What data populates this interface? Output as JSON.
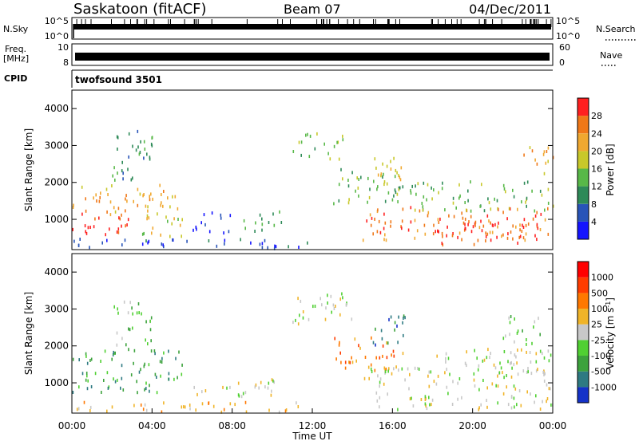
{
  "header": {
    "station": "Saskatoon (fitACF)",
    "beam": "Beam 07",
    "date": "04/Dec/2011"
  },
  "top_panels": {
    "nsky_label": "N.Sky",
    "nsky_ticks": [
      "10^5",
      "10^0"
    ],
    "nsearch_label": "N.Search",
    "nsearch_ticks": [
      "10^5",
      "10^0"
    ],
    "freq_label_line1": "Freq.",
    "freq_label_line2": "[MHz]",
    "freq_ticks": [
      "10",
      "8"
    ],
    "nave_label": "Nave",
    "nave_ticks": [
      "60",
      "0"
    ],
    "cpid_label": "CPID",
    "cpid_value": "twofsound 3501"
  },
  "chart_data": [
    {
      "type": "heatmap",
      "name": "power",
      "ylabel": "Slant Range [km]",
      "ylim": [
        180,
        4500
      ],
      "yticks": [
        "1000",
        "2000",
        "3000",
        "4000"
      ],
      "colorbar_label": "Power [dB]",
      "colorbar_ticks": [
        "4",
        "8",
        "12",
        "16",
        "20",
        "24",
        "28"
      ],
      "colorbar_colors": [
        "#1414ff",
        "#2854b8",
        "#2e8a58",
        "#58b848",
        "#c8c82a",
        "#f0a830",
        "#f07818",
        "#ff2020"
      ],
      "regions": [
        {
          "t0": 0.0,
          "t1": 2.8,
          "r0": 500,
          "r1": 1200,
          "level": 7
        },
        {
          "t0": 0.0,
          "t1": 5.5,
          "r0": 1100,
          "r1": 1900,
          "level": 5
        },
        {
          "t0": 3.0,
          "t1": 5.5,
          "r0": 500,
          "r1": 1100,
          "level": 4
        },
        {
          "t0": 2.0,
          "t1": 4.0,
          "r0": 2000,
          "r1": 3500,
          "level": 2
        },
        {
          "t0": 6.0,
          "t1": 8.0,
          "r0": 600,
          "r1": 1200,
          "level": 1
        },
        {
          "t0": 8.5,
          "t1": 10.5,
          "r0": 600,
          "r1": 1200,
          "level": 2
        },
        {
          "t0": 0.0,
          "t1": 12.0,
          "r0": 180,
          "r1": 450,
          "level": 1
        },
        {
          "t0": 11.0,
          "t1": 13.5,
          "r0": 2600,
          "r1": 3300,
          "level": 3
        },
        {
          "t0": 13.0,
          "t1": 16.5,
          "r0": 1400,
          "r1": 2400,
          "level": 3
        },
        {
          "t0": 15.0,
          "t1": 16.5,
          "r0": 2000,
          "r1": 2700,
          "level": 5
        },
        {
          "t0": 14.5,
          "t1": 24.0,
          "r0": 400,
          "r1": 1300,
          "level": 6
        },
        {
          "t0": 18.0,
          "t1": 23.5,
          "r0": 250,
          "r1": 900,
          "level": 7
        },
        {
          "t0": 16.0,
          "t1": 24.0,
          "r0": 1200,
          "r1": 2000,
          "level": 3
        },
        {
          "t0": 22.5,
          "t1": 24.0,
          "r0": 2200,
          "r1": 3000,
          "level": 5
        }
      ]
    },
    {
      "type": "heatmap",
      "name": "velocity",
      "xlabel": "Time UT",
      "ylabel": "Slant Range [km]",
      "ylim": [
        180,
        4500
      ],
      "yticks": [
        "1000",
        "2000",
        "3000",
        "4000"
      ],
      "xticks": [
        "00:00",
        "04:00",
        "08:00",
        "12:00",
        "16:00",
        "20:00",
        "00:00"
      ],
      "colorbar_label": "Velocity [m s",
      "colorbar_sup": "-1",
      "colorbar_label_end": "]",
      "colorbar_ticks": [
        "1000",
        "500",
        "100",
        "25",
        "-25",
        "-100",
        "-500",
        "-1000"
      ],
      "colorbar_colors": [
        "#1432c8",
        "#2e7a82",
        "#3ca23c",
        "#50d032",
        "#c8c8c8",
        "#f0b428",
        "#ff7800",
        "#ff3c00",
        "#ff0000"
      ],
      "regions": [
        {
          "t0": 0.0,
          "t1": 5.5,
          "r0": 700,
          "r1": 1900,
          "level": 2
        },
        {
          "t0": 2.0,
          "t1": 4.0,
          "r0": 2000,
          "r1": 3200,
          "level": 3
        },
        {
          "t0": 0.0,
          "t1": 12.0,
          "r0": 180,
          "r1": 450,
          "level": 5
        },
        {
          "t0": 6.0,
          "t1": 10.5,
          "r0": 600,
          "r1": 1100,
          "level": 4
        },
        {
          "t0": 11.0,
          "t1": 14.0,
          "r0": 2500,
          "r1": 3400,
          "level": 4
        },
        {
          "t0": 13.0,
          "t1": 16.5,
          "r0": 1300,
          "r1": 2200,
          "level": 6
        },
        {
          "t0": 15.0,
          "t1": 17.0,
          "r0": 2000,
          "r1": 2800,
          "level": 1
        },
        {
          "t0": 14.5,
          "t1": 24.0,
          "r0": 250,
          "r1": 1400,
          "level": 4
        },
        {
          "t0": 18.0,
          "t1": 24.0,
          "r0": 1200,
          "r1": 1900,
          "level": 4
        },
        {
          "t0": 21.5,
          "t1": 23.5,
          "r0": 2000,
          "r1": 2800,
          "level": 3
        }
      ]
    }
  ]
}
